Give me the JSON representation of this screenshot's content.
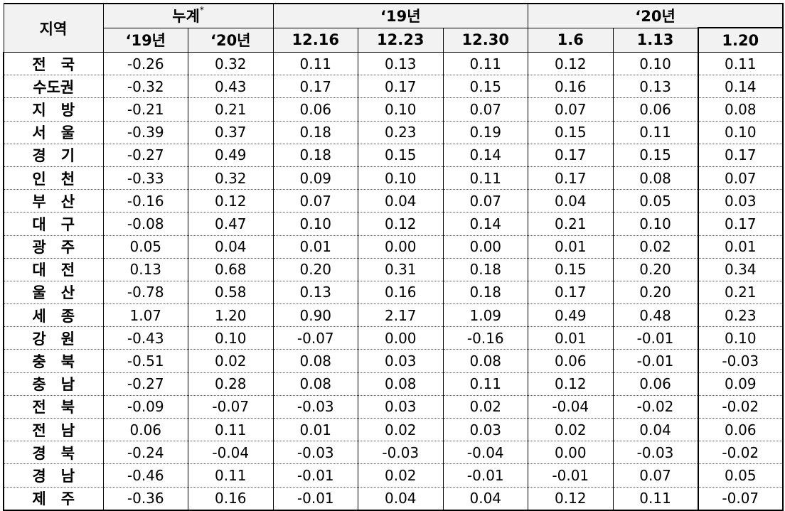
{
  "header": {
    "region_label": "지역",
    "groups": [
      {
        "label": "누계",
        "mark": "*",
        "span": 2
      },
      {
        "label": "‘19년",
        "mark": "",
        "span": 3
      },
      {
        "label": "‘20년",
        "mark": "",
        "span": 3
      }
    ],
    "columns": [
      "‘19년",
      "‘20년",
      "12.16",
      "12.23",
      "12.30",
      "1.6",
      "1.13",
      "1.20"
    ]
  },
  "rows": [
    {
      "region": "전　국",
      "values": [
        "-0.26",
        "0.32",
        "0.11",
        "0.13",
        "0.11",
        "0.12",
        "0.10",
        "0.11"
      ]
    },
    {
      "region": "수도권",
      "values": [
        "-0.32",
        "0.43",
        "0.17",
        "0.17",
        "0.15",
        "0.16",
        "0.13",
        "0.14"
      ]
    },
    {
      "region": "지　방",
      "values": [
        "-0.21",
        "0.21",
        "0.06",
        "0.10",
        "0.07",
        "0.07",
        "0.06",
        "0.08"
      ]
    },
    {
      "region": "서　울",
      "values": [
        "-0.39",
        "0.37",
        "0.18",
        "0.23",
        "0.19",
        "0.15",
        "0.11",
        "0.10"
      ]
    },
    {
      "region": "경　기",
      "values": [
        "-0.27",
        "0.49",
        "0.18",
        "0.15",
        "0.14",
        "0.17",
        "0.15",
        "0.17"
      ]
    },
    {
      "region": "인　천",
      "values": [
        "-0.33",
        "0.32",
        "0.09",
        "0.10",
        "0.11",
        "0.17",
        "0.08",
        "0.07"
      ]
    },
    {
      "region": "부　산",
      "values": [
        "-0.16",
        "0.12",
        "0.07",
        "0.04",
        "0.07",
        "0.04",
        "0.05",
        "0.03"
      ]
    },
    {
      "region": "대　구",
      "values": [
        "-0.08",
        "0.47",
        "0.10",
        "0.12",
        "0.14",
        "0.21",
        "0.10",
        "0.17"
      ]
    },
    {
      "region": "광　주",
      "values": [
        "0.05",
        "0.04",
        "0.01",
        "0.00",
        "0.00",
        "0.01",
        "0.02",
        "0.01"
      ]
    },
    {
      "region": "대　전",
      "values": [
        "0.13",
        "0.68",
        "0.20",
        "0.31",
        "0.18",
        "0.15",
        "0.20",
        "0.34"
      ]
    },
    {
      "region": "울　산",
      "values": [
        "-0.78",
        "0.58",
        "0.13",
        "0.16",
        "0.18",
        "0.17",
        "0.20",
        "0.21"
      ]
    },
    {
      "region": "세　종",
      "values": [
        "1.07",
        "1.20",
        "0.90",
        "2.17",
        "1.09",
        "0.49",
        "0.48",
        "0.23"
      ]
    },
    {
      "region": "강　원",
      "values": [
        "-0.43",
        "0.10",
        "-0.07",
        "0.00",
        "-0.16",
        "0.01",
        "-0.01",
        "0.10"
      ]
    },
    {
      "region": "충　북",
      "values": [
        "-0.51",
        "0.02",
        "0.08",
        "0.03",
        "0.08",
        "0.06",
        "-0.01",
        "-0.03"
      ]
    },
    {
      "region": "충　남",
      "values": [
        "-0.27",
        "0.28",
        "0.08",
        "0.08",
        "0.11",
        "0.12",
        "0.06",
        "0.09"
      ]
    },
    {
      "region": "전　북",
      "values": [
        "-0.09",
        "-0.07",
        "-0.03",
        "0.03",
        "0.02",
        "-0.04",
        "-0.02",
        "-0.02"
      ]
    },
    {
      "region": "전　남",
      "values": [
        "0.06",
        "0.11",
        "0.01",
        "0.02",
        "0.03",
        "0.02",
        "0.04",
        "0.06"
      ]
    },
    {
      "region": "경　북",
      "values": [
        "-0.24",
        "-0.04",
        "-0.03",
        "-0.03",
        "-0.04",
        "0.00",
        "-0.03",
        "-0.02"
      ]
    },
    {
      "region": "경　남",
      "values": [
        "-0.46",
        "0.11",
        "-0.01",
        "0.02",
        "-0.01",
        "-0.01",
        "0.07",
        "0.05"
      ]
    },
    {
      "region": "제　주",
      "values": [
        "-0.36",
        "0.16",
        "-0.01",
        "0.04",
        "0.04",
        "0.12",
        "0.11",
        "-0.07"
      ]
    }
  ]
}
